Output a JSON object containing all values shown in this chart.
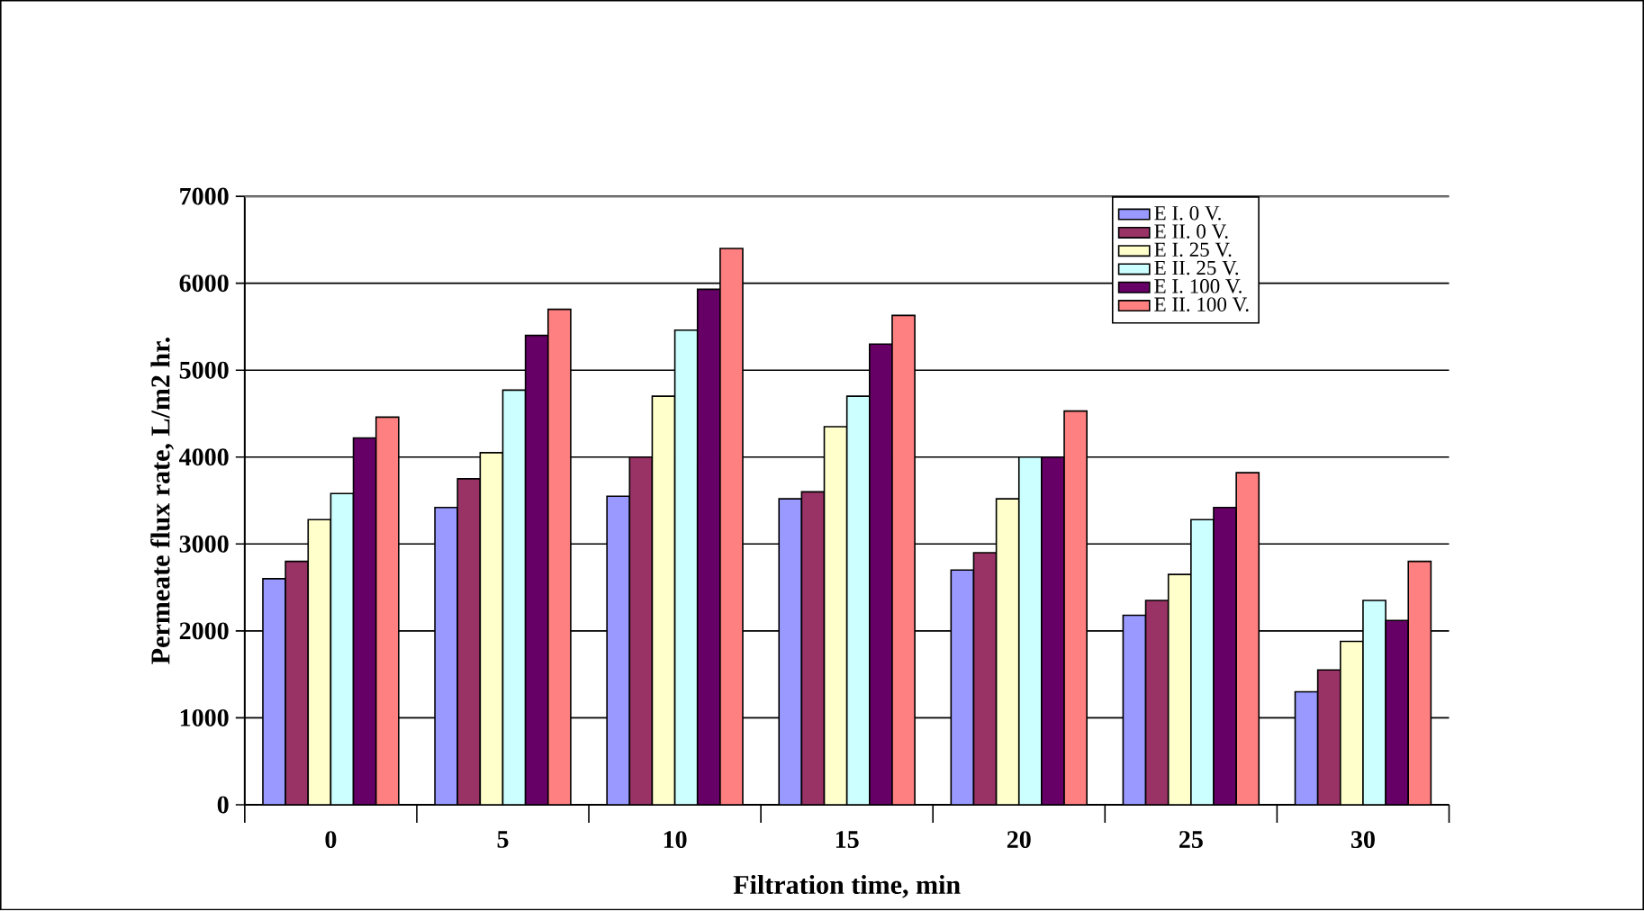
{
  "chart_data": {
    "type": "bar",
    "xlabel": "Filtration time, min",
    "ylabel": "Permeate flux rate, L/m2 hr.",
    "categories": [
      "0",
      "5",
      "10",
      "15",
      "20",
      "25",
      "30"
    ],
    "series": [
      {
        "name": "E I. 0 V.",
        "color": "#9999ff",
        "values": [
          2600,
          3420,
          3550,
          3520,
          2700,
          2180,
          1300
        ]
      },
      {
        "name": "E II. 0 V.",
        "color": "#993366",
        "values": [
          2800,
          3750,
          4000,
          3600,
          2900,
          2350,
          1550
        ]
      },
      {
        "name": "E I. 25 V.",
        "color": "#ffffcc",
        "values": [
          3280,
          4050,
          4700,
          4350,
          3520,
          2650,
          1880
        ]
      },
      {
        "name": "E II. 25 V.",
        "color": "#ccffff",
        "values": [
          3580,
          4770,
          5460,
          4700,
          4000,
          3280,
          2350
        ]
      },
      {
        "name": "E I. 100 V.",
        "color": "#660066",
        "values": [
          4220,
          5400,
          5930,
          5300,
          4000,
          3420,
          2120
        ]
      },
      {
        "name": "E II. 100 V.",
        "color": "#ff8080",
        "values": [
          4460,
          5700,
          6400,
          5630,
          4530,
          3820,
          2800
        ]
      }
    ],
    "ylim": [
      0,
      7000
    ],
    "yticks": [
      0,
      1000,
      2000,
      3000,
      4000,
      5000,
      6000,
      7000
    ],
    "grid": "y",
    "legend": "top right"
  }
}
